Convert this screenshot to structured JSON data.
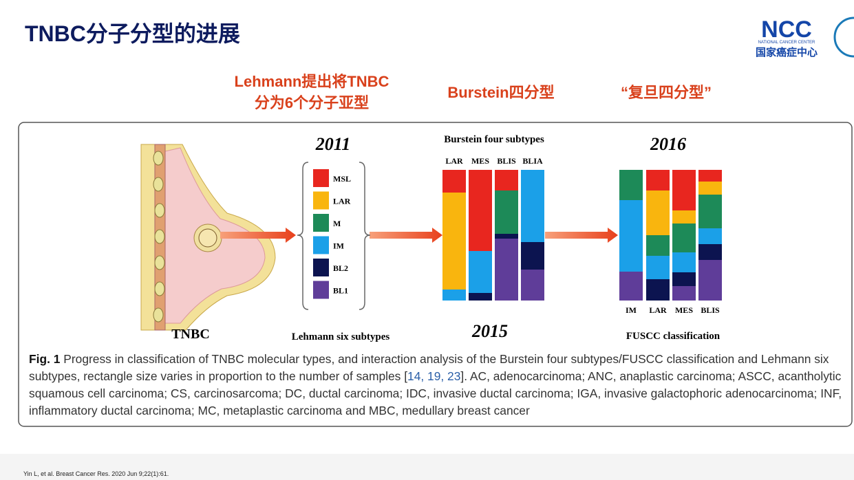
{
  "header": {
    "title": "TNBC分子分型的进展",
    "logo_text": "NCC",
    "logo_subtitle": "NATIONAL CANCER CENTER",
    "logo_name": "国家癌症中心"
  },
  "headings": [
    {
      "lines": [
        "Lehmann提出将TNBC",
        "分为6个分子亚型"
      ]
    },
    {
      "lines": [
        "Burstein四分型"
      ]
    },
    {
      "lines": [
        "“复旦四分型”"
      ]
    }
  ],
  "figure": {
    "tnbc_label": "TNBC",
    "year_2011": "2011",
    "lehmann_items": [
      "MSL",
      "LAR",
      "M",
      "IM",
      "BL2",
      "BL1"
    ],
    "lehmann_label": "Lehmann six subtypes",
    "burstein_title": "Burstein four subtypes",
    "burstein_columns": [
      "LAR",
      "MES",
      "BLIS",
      "BLIA"
    ],
    "year_2015": "2015",
    "year_2016": "2016",
    "fuscc_columns": [
      "IM",
      "LAR",
      "MES",
      "BLIS"
    ],
    "fuscc_label": "FUSCC classification"
  },
  "caption": {
    "label": "Fig. 1",
    "text_before": "Progress in classification of TNBC molecular types, and interaction analysis of the Burstein four subtypes/FUSCC classification and Lehmann six subtypes, rectangle size varies in proportion to the number of samples [",
    "refs": "14, 19, 23",
    "text_after": "]. AC, adenocarcinoma; ANC, anaplastic carcinoma; ASCC, acantholytic squamous cell carcinoma; CS, carcinosarcoma; DC, ductal carcinoma; IDC, invasive ductal carcinoma; IGA, invasive galactophoric adenocarcinoma; INF, inflammatory ductal carcinoma; MC, metaplastic carcinoma and MBC, medullary breast cancer"
  },
  "footer": {
    "citation": "Yin L, et al. Breast Cancer Res. 2020 Jun 9;22(1):61."
  }
}
